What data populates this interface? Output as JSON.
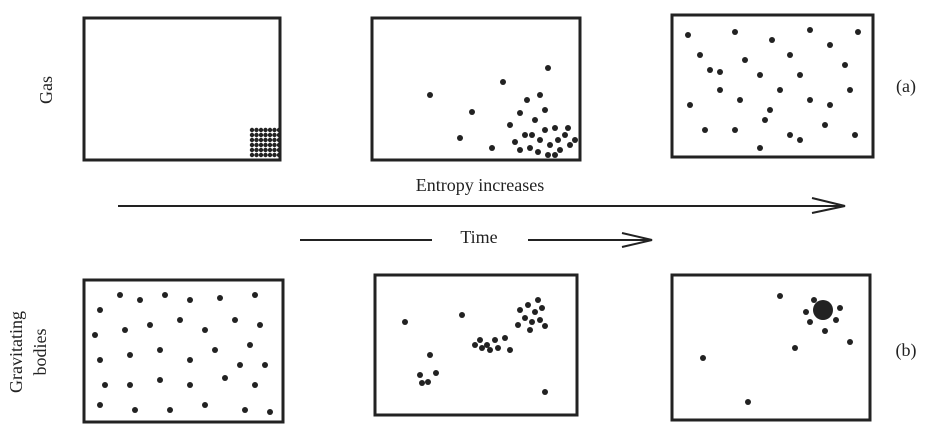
{
  "labels": {
    "gas": "Gas",
    "a": "(a)",
    "entropy": "Entropy increases",
    "time": "Time",
    "gravitating": "Gravitating",
    "bodies": "bodies",
    "b": "(b)"
  }
}
